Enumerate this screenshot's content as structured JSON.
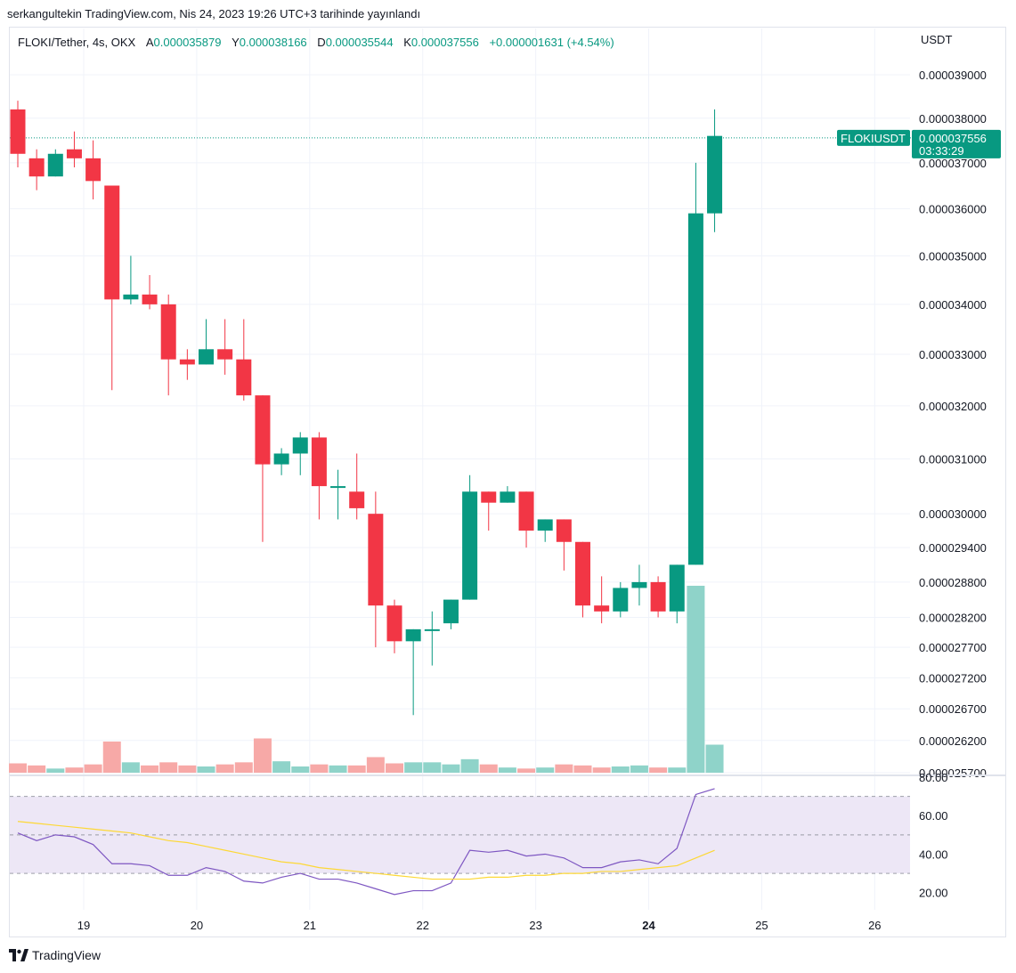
{
  "publish_line": "serkangultekin TradingView.com, Nis 24, 2023 19:26 UTC+3 tarihinde yayınlandı",
  "legend": {
    "symbol": "FLOKI/Tether, 4s, OKX",
    "open_label": "A",
    "open": "0.000035879",
    "high_label": "Y",
    "high": "0.000038166",
    "low_label": "D",
    "low": "0.000035544",
    "close_label": "K",
    "close": "0.000037556",
    "change": "+0.000001631 (+4.54%)"
  },
  "currency_label": "USDT",
  "price_tag": {
    "symbol": "FLOKIUSDT",
    "price": "0.000037556",
    "countdown": "03:33:29"
  },
  "footer_brand": "TradingView",
  "colors": {
    "up": "#089981",
    "down": "#f23645",
    "vol_up": "#8fd3c9",
    "vol_down": "#f7a9a7",
    "rsi": "#7e57c2",
    "rsi_ma": "#fdd835",
    "rsi_band": "#ede7f6"
  },
  "chart_data": [
    {
      "type": "candlestick",
      "scale": "log",
      "ylim": [
        2.57e-05,
        3.95e-05
      ],
      "y_ticks": [
        "0.000039000",
        "0.000038000",
        "0.000037000",
        "0.000036000",
        "0.000035000",
        "0.000034000",
        "0.000033000",
        "0.000032000",
        "0.000031000",
        "0.000030000",
        "0.000029400",
        "0.000028800",
        "0.000028200",
        "0.000027700",
        "0.000027200",
        "0.000026700",
        "0.000026200",
        "0.000025700"
      ],
      "x_ticks": [
        "19",
        "20",
        "21",
        "22",
        "23",
        "24",
        "25",
        "26"
      ],
      "x_tick_bold": "24",
      "candles": [
        {
          "o": 3.82e-05,
          "h": 3.84e-05,
          "l": 3.69e-05,
          "c": 3.72e-05
        },
        {
          "o": 3.71e-05,
          "h": 3.73e-05,
          "l": 3.64e-05,
          "c": 3.67e-05
        },
        {
          "o": 3.67e-05,
          "h": 3.73e-05,
          "l": 3.67e-05,
          "c": 3.72e-05
        },
        {
          "o": 3.73e-05,
          "h": 3.77e-05,
          "l": 3.69e-05,
          "c": 3.71e-05
        },
        {
          "o": 3.71e-05,
          "h": 3.75e-05,
          "l": 3.62e-05,
          "c": 3.66e-05
        },
        {
          "o": 3.65e-05,
          "h": 3.65e-05,
          "l": 3.23e-05,
          "c": 3.41e-05
        },
        {
          "o": 3.41e-05,
          "h": 3.5e-05,
          "l": 3.4e-05,
          "c": 3.42e-05
        },
        {
          "o": 3.42e-05,
          "h": 3.46e-05,
          "l": 3.39e-05,
          "c": 3.4e-05
        },
        {
          "o": 3.4e-05,
          "h": 3.42e-05,
          "l": 3.22e-05,
          "c": 3.29e-05
        },
        {
          "o": 3.29e-05,
          "h": 3.31e-05,
          "l": 3.25e-05,
          "c": 3.28e-05
        },
        {
          "o": 3.28e-05,
          "h": 3.37e-05,
          "l": 3.28e-05,
          "c": 3.31e-05
        },
        {
          "o": 3.31e-05,
          "h": 3.37e-05,
          "l": 3.26e-05,
          "c": 3.29e-05
        },
        {
          "o": 3.29e-05,
          "h": 3.37e-05,
          "l": 3.21e-05,
          "c": 3.22e-05
        },
        {
          "o": 3.22e-05,
          "h": 3.22e-05,
          "l": 2.95e-05,
          "c": 3.09e-05
        },
        {
          "o": 3.09e-05,
          "h": 3.12e-05,
          "l": 3.07e-05,
          "c": 3.11e-05
        },
        {
          "o": 3.11e-05,
          "h": 3.15e-05,
          "l": 3.07e-05,
          "c": 3.14e-05
        },
        {
          "o": 3.14e-05,
          "h": 3.15e-05,
          "l": 2.99e-05,
          "c": 3.05e-05
        },
        {
          "o": 3.05e-05,
          "h": 3.08e-05,
          "l": 2.99e-05,
          "c": 3.05e-05
        },
        {
          "o": 3.04e-05,
          "h": 3.11e-05,
          "l": 2.99e-05,
          "c": 3.01e-05
        },
        {
          "o": 3e-05,
          "h": 3.04e-05,
          "l": 2.77e-05,
          "c": 2.84e-05
        },
        {
          "o": 2.84e-05,
          "h": 2.85e-05,
          "l": 2.76e-05,
          "c": 2.78e-05
        },
        {
          "o": 2.78e-05,
          "h": 2.8e-05,
          "l": 2.66e-05,
          "c": 2.8e-05
        },
        {
          "o": 2.8e-05,
          "h": 2.83e-05,
          "l": 2.74e-05,
          "c": 2.8e-05
        },
        {
          "o": 2.81e-05,
          "h": 2.85e-05,
          "l": 2.8e-05,
          "c": 2.85e-05
        },
        {
          "o": 2.85e-05,
          "h": 3.07e-05,
          "l": 2.85e-05,
          "c": 3.04e-05
        },
        {
          "o": 3.04e-05,
          "h": 3.04e-05,
          "l": 2.97e-05,
          "c": 3.02e-05
        },
        {
          "o": 3.02e-05,
          "h": 3.05e-05,
          "l": 3.02e-05,
          "c": 3.04e-05
        },
        {
          "o": 3.04e-05,
          "h": 3.04e-05,
          "l": 2.94e-05,
          "c": 2.97e-05
        },
        {
          "o": 2.97e-05,
          "h": 2.99e-05,
          "l": 2.95e-05,
          "c": 2.99e-05
        },
        {
          "o": 2.99e-05,
          "h": 2.99e-05,
          "l": 2.9e-05,
          "c": 2.95e-05
        },
        {
          "o": 2.95e-05,
          "h": 2.95e-05,
          "l": 2.82e-05,
          "c": 2.84e-05
        },
        {
          "o": 2.84e-05,
          "h": 2.89e-05,
          "l": 2.81e-05,
          "c": 2.83e-05
        },
        {
          "o": 2.83e-05,
          "h": 2.88e-05,
          "l": 2.82e-05,
          "c": 2.87e-05
        },
        {
          "o": 2.87e-05,
          "h": 2.91e-05,
          "l": 2.84e-05,
          "c": 2.88e-05
        },
        {
          "o": 2.88e-05,
          "h": 2.89e-05,
          "l": 2.82e-05,
          "c": 2.83e-05
        },
        {
          "o": 2.83e-05,
          "h": 2.91e-05,
          "l": 2.81e-05,
          "c": 2.91e-05
        },
        {
          "o": 2.91e-05,
          "h": 3.7e-05,
          "l": 2.91e-05,
          "c": 3.59e-05
        },
        {
          "o": 3.59e-05,
          "h": 3.82e-05,
          "l": 3.55e-05,
          "c": 3.76e-05
        }
      ],
      "volumes": [
        9,
        7,
        4,
        5,
        8,
        30,
        10,
        7,
        10,
        7,
        6,
        8,
        10,
        33,
        11,
        6,
        8,
        7,
        7,
        15,
        9,
        10,
        10,
        8,
        13,
        8,
        5,
        4,
        5,
        8,
        7,
        5,
        6,
        7,
        5,
        5,
        180,
        27
      ],
      "last_price": 3.7556e-05
    },
    {
      "type": "line",
      "name": "RSI",
      "ylim": [
        12,
        80
      ],
      "y_ticks": [
        "80.00",
        "60.00",
        "40.00",
        "20.00"
      ],
      "bands": [
        70,
        50,
        30
      ],
      "series": [
        {
          "values": [
            51,
            47,
            50,
            49,
            45,
            35,
            35,
            34,
            29,
            29,
            33,
            31,
            26,
            25,
            28,
            30,
            27,
            27,
            25,
            22,
            19,
            21,
            21,
            25,
            42,
            41,
            42,
            39,
            40,
            38,
            33,
            33,
            36,
            37,
            35,
            43,
            71,
            74
          ]
        },
        {
          "values": [
            57,
            56,
            55,
            54,
            53,
            52,
            51,
            49,
            47,
            46,
            44,
            42,
            40,
            38,
            36,
            35,
            33,
            32,
            31,
            30,
            29,
            28,
            27,
            27,
            27,
            28,
            28,
            29,
            29,
            30,
            30,
            31,
            31,
            32,
            33,
            34,
            38,
            42
          ]
        }
      ]
    }
  ]
}
